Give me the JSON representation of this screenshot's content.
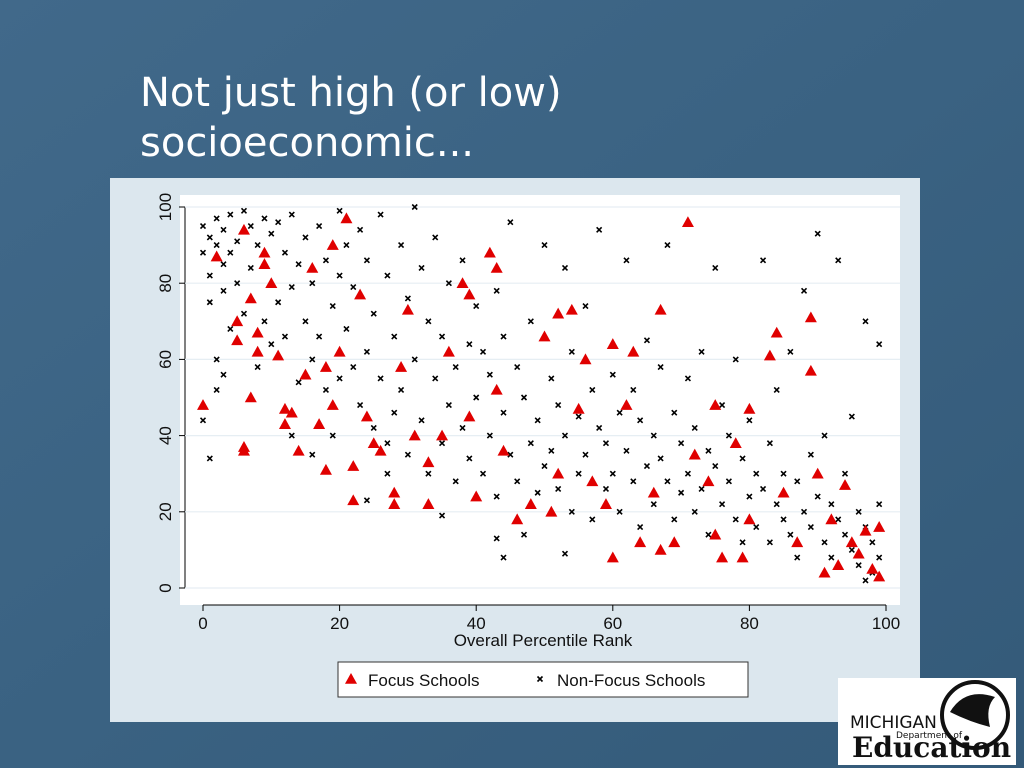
{
  "slide_title": [
    "Not just high (or low)",
    "socioeconomic..."
  ],
  "logo": {
    "state": "MICHIGAN",
    "department": "Department of",
    "name": "Education"
  },
  "chart_data": {
    "type": "scatter",
    "x_label": "Overall Percentile Rank",
    "xlim": [
      0,
      100
    ],
    "xticks": [
      0,
      20,
      40,
      60,
      80,
      100
    ],
    "ylim": [
      0,
      100
    ],
    "yticks": [
      0,
      20,
      40,
      60,
      80,
      100
    ],
    "grid": true,
    "legend": "bottom",
    "series": [
      {
        "name": "Focus Schools",
        "color": "#e00000",
        "marker": "triangle",
        "x": [
          0,
          2,
          5,
          5,
          6,
          6,
          6,
          7,
          7,
          8,
          8,
          9,
          9,
          10,
          11,
          12,
          12,
          13,
          14,
          15,
          16,
          17,
          18,
          18,
          19,
          19,
          20,
          21,
          22,
          22,
          23,
          24,
          25,
          26,
          28,
          28,
          29,
          30,
          31,
          33,
          33,
          35,
          36,
          38,
          39,
          39,
          40,
          42,
          43,
          43,
          44,
          46,
          48,
          50,
          51,
          52,
          52,
          54,
          55,
          56,
          57,
          59,
          60,
          60,
          62,
          63,
          64,
          66,
          67,
          67,
          69,
          71,
          72,
          74,
          75,
          75,
          76,
          78,
          79,
          80,
          80,
          83,
          84,
          85,
          87,
          89,
          89,
          90,
          91,
          92,
          93,
          94,
          95,
          96,
          97,
          98,
          99,
          99
        ],
        "y": [
          48,
          87,
          70,
          65,
          37,
          36,
          94,
          76,
          50,
          67,
          62,
          88,
          85,
          80,
          61,
          47,
          43,
          46,
          36,
          56,
          84,
          43,
          58,
          31,
          90,
          48,
          62,
          97,
          23,
          32,
          77,
          45,
          38,
          36,
          25,
          22,
          58,
          73,
          40,
          33,
          22,
          40,
          62,
          80,
          77,
          45,
          24,
          88,
          84,
          52,
          36,
          18,
          22,
          66,
          20,
          30,
          72,
          73,
          47,
          60,
          28,
          22,
          64,
          8,
          48,
          62,
          12,
          25,
          73,
          10,
          12,
          96,
          35,
          28,
          14,
          48,
          8,
          38,
          8,
          47,
          18,
          61,
          67,
          25,
          12,
          71,
          57,
          30,
          4,
          18,
          6,
          27,
          12,
          9,
          15,
          5,
          3,
          16
        ]
      },
      {
        "name": "Non-Focus Schools",
        "color": "#000000",
        "marker": "x",
        "x": [
          0,
          0,
          1,
          1,
          1,
          2,
          2,
          2,
          3,
          3,
          3,
          4,
          4,
          4,
          5,
          5,
          6,
          6,
          7,
          7,
          8,
          8,
          9,
          9,
          10,
          10,
          1,
          2,
          3,
          0,
          11,
          11,
          12,
          12,
          13,
          13,
          14,
          14,
          15,
          15,
          16,
          16,
          17,
          17,
          18,
          18,
          19,
          19,
          20,
          20,
          20,
          13,
          16,
          21,
          21,
          22,
          22,
          23,
          23,
          24,
          24,
          25,
          25,
          26,
          26,
          27,
          27,
          28,
          28,
          29,
          29,
          30,
          30,
          24,
          27,
          31,
          31,
          32,
          32,
          33,
          33,
          34,
          34,
          35,
          35,
          36,
          36,
          37,
          37,
          38,
          38,
          39,
          39,
          40,
          40,
          35,
          41,
          41,
          42,
          42,
          43,
          43,
          44,
          44,
          45,
          45,
          46,
          46,
          47,
          47,
          48,
          48,
          49,
          49,
          50,
          50,
          44,
          43,
          51,
          51,
          52,
          52,
          53,
          53,
          54,
          54,
          55,
          55,
          56,
          56,
          57,
          57,
          58,
          58,
          59,
          59,
          60,
          60,
          53,
          61,
          61,
          62,
          62,
          63,
          63,
          64,
          64,
          65,
          65,
          66,
          66,
          67,
          67,
          68,
          68,
          69,
          69,
          70,
          70,
          71,
          71,
          72,
          72,
          73,
          73,
          74,
          74,
          75,
          75,
          76,
          76,
          77,
          77,
          78,
          78,
          79,
          79,
          80,
          80,
          81,
          81,
          82,
          82,
          83,
          83,
          84,
          84,
          85,
          85,
          86,
          86,
          87,
          87,
          88,
          88,
          89,
          89,
          90,
          90,
          91,
          91,
          92,
          92,
          93,
          93,
          94,
          94,
          95,
          95,
          96,
          96,
          97,
          97,
          98,
          98,
          99,
          99,
          99,
          97
        ],
        "y": [
          95,
          88,
          92,
          82,
          75,
          97,
          90,
          60,
          85,
          78,
          94,
          98,
          68,
          88,
          91,
          80,
          99,
          72,
          95,
          84,
          90,
          58,
          97,
          70,
          93,
          64,
          34,
          52,
          56,
          44,
          96,
          75,
          88,
          66,
          98,
          79,
          85,
          54,
          92,
          70,
          80,
          60,
          95,
          66,
          86,
          52,
          74,
          40,
          99,
          82,
          55,
          40,
          35,
          90,
          68,
          79,
          58,
          94,
          48,
          86,
          62,
          72,
          42,
          98,
          55,
          82,
          38,
          66,
          46,
          90,
          52,
          76,
          35,
          23,
          30,
          100,
          60,
          84,
          44,
          70,
          30,
          92,
          55,
          66,
          38,
          80,
          48,
          58,
          28,
          86,
          42,
          64,
          34,
          74,
          50,
          19,
          62,
          30,
          56,
          40,
          78,
          24,
          66,
          46,
          96,
          35,
          58,
          28,
          50,
          14,
          70,
          38,
          44,
          25,
          90,
          32,
          8,
          13,
          55,
          36,
          48,
          26,
          84,
          40,
          62,
          20,
          45,
          30,
          74,
          35,
          52,
          18,
          94,
          42,
          38,
          26,
          56,
          30,
          9,
          46,
          20,
          86,
          36,
          52,
          28,
          44,
          16,
          65,
          32,
          40,
          22,
          58,
          34,
          90,
          28,
          46,
          18,
          38,
          25,
          55,
          30,
          42,
          20,
          62,
          26,
          36,
          14,
          84,
          32,
          48,
          22,
          40,
          28,
          60,
          18,
          34,
          12,
          44,
          24,
          30,
          16,
          86,
          26,
          38,
          12,
          22,
          52,
          18,
          30,
          62,
          14,
          28,
          8,
          78,
          20,
          16,
          35,
          93,
          24,
          12,
          40,
          22,
          8,
          86,
          18,
          14,
          30,
          10,
          45,
          20,
          6,
          70,
          16,
          12,
          4,
          64,
          22,
          8,
          2
        ]
      }
    ]
  }
}
